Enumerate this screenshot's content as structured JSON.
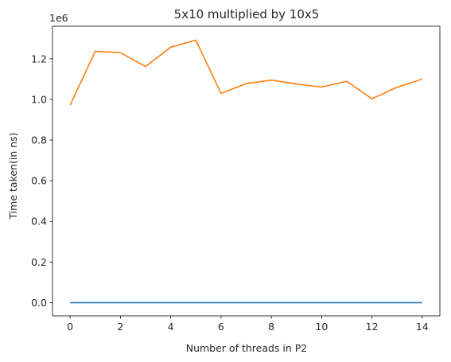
{
  "chart_data": {
    "type": "line",
    "title": "5x10 multiplied by 10x5",
    "xlabel": "Number of threads in P2",
    "ylabel": "Time taken(in ns)",
    "y_offset_label": "1e6",
    "xlim": [
      -0.7,
      14.7
    ],
    "ylim": [
      -0.065,
      1.36
    ],
    "y_scale_factor": 1000000,
    "x_ticks": [
      0,
      2,
      4,
      6,
      8,
      10,
      12,
      14
    ],
    "x_tick_labels": [
      "0",
      "2",
      "4",
      "6",
      "8",
      "10",
      "12",
      "14"
    ],
    "y_ticks": [
      0.0,
      0.2,
      0.4,
      0.6,
      0.8,
      1.0,
      1.2
    ],
    "y_tick_labels": [
      "0.0",
      "0.2",
      "0.4",
      "0.6",
      "0.8",
      "1.0",
      "1.2"
    ],
    "grid": false,
    "x": [
      0,
      1,
      2,
      3,
      4,
      5,
      6,
      7,
      8,
      9,
      10,
      11,
      12,
      13,
      14
    ],
    "series": [
      {
        "color": "#1f77b4",
        "values": [
          0,
          0,
          0,
          0,
          0,
          0,
          0,
          0,
          0,
          0,
          0,
          0,
          0,
          0,
          0
        ]
      },
      {
        "color": "#ff7f0e",
        "values": [
          0.972,
          1.237,
          1.23,
          1.162,
          1.257,
          1.292,
          1.029,
          1.078,
          1.095,
          1.076,
          1.061,
          1.089,
          1.003,
          1.06,
          1.1
        ]
      }
    ]
  }
}
